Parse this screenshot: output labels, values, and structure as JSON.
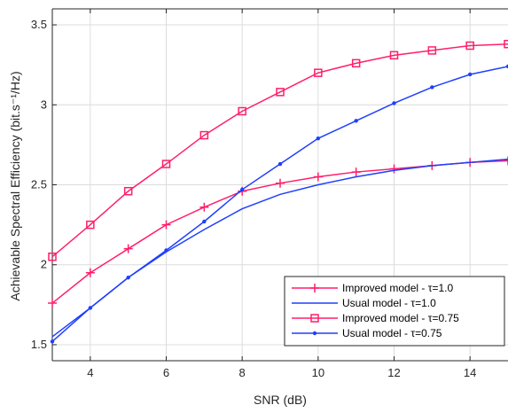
{
  "chart_data": {
    "type": "line",
    "title": "",
    "xlabel": "SNR (dB)",
    "ylabel": "Achievable Spectral Efficiency (bit.s⁻¹/Hz)",
    "xlim": [
      3,
      15
    ],
    "ylim": [
      1.4,
      3.6
    ],
    "xticks": [
      4,
      6,
      8,
      10,
      12,
      14
    ],
    "yticks": [
      1.5,
      2,
      2.5,
      3,
      3.5
    ],
    "xtick_labels": [
      "4",
      "6",
      "8",
      "10",
      "12",
      "14"
    ],
    "ytick_labels": [
      "1.5",
      "2",
      "2.5",
      "3",
      "3.5"
    ],
    "grid": true,
    "legend_position": "bottom-right",
    "x": [
      3,
      4,
      5,
      6,
      7,
      8,
      9,
      10,
      11,
      12,
      13,
      14,
      15
    ],
    "series": [
      {
        "name": "Improved model - τ=1.0",
        "color": "#ff1f6b",
        "marker": "plus",
        "values": [
          1.76,
          1.95,
          2.1,
          2.25,
          2.36,
          2.46,
          2.51,
          2.55,
          2.58,
          2.6,
          2.62,
          2.64,
          2.65
        ]
      },
      {
        "name": "Usual model - τ=1.0",
        "color": "#1f3fff",
        "marker": "none",
        "values": [
          1.55,
          1.73,
          1.92,
          2.08,
          2.22,
          2.35,
          2.44,
          2.5,
          2.55,
          2.59,
          2.62,
          2.64,
          2.66
        ]
      },
      {
        "name": "Improved model - τ=0.75",
        "color": "#ff1f6b",
        "marker": "square",
        "values": [
          2.05,
          2.25,
          2.46,
          2.63,
          2.81,
          2.96,
          3.08,
          3.2,
          3.26,
          3.31,
          3.34,
          3.37,
          3.38
        ]
      },
      {
        "name": "Usual model  - τ=0.75",
        "color": "#1f3fff",
        "marker": "dot",
        "values": [
          1.52,
          1.73,
          1.92,
          2.09,
          2.27,
          2.47,
          2.63,
          2.79,
          2.9,
          3.01,
          3.11,
          3.19,
          3.24
        ]
      }
    ]
  }
}
